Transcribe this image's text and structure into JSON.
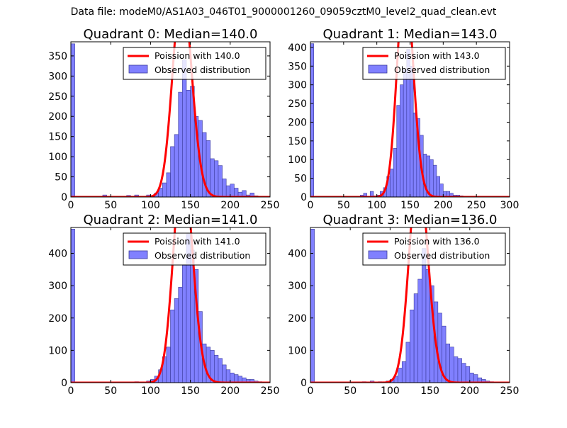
{
  "figure": {
    "suptitle": "Data file: modeM0/AS1A03_046T01_9000001260_09059cztM0_level2_quad_clean.evt"
  },
  "colors": {
    "bar_fill": "#8080ff",
    "bar_edge": "#3a3a99",
    "poisson_line": "#ff0000",
    "axis": "#000000"
  },
  "chart_data": [
    {
      "type": "bar",
      "title": "Quadrant 0: Median=140.0",
      "xlim": [
        0,
        250
      ],
      "ylim": [
        0,
        385
      ],
      "xticks": [
        0,
        50,
        100,
        150,
        200,
        250
      ],
      "yticks": [
        0,
        50,
        100,
        150,
        200,
        250,
        300,
        350
      ],
      "bin_width": 5,
      "legend": {
        "location": "top-right",
        "line_label": "Poission with 140.0",
        "bar_label": "Observed distribution"
      },
      "poisson_mean": 140.0,
      "poisson_scale": 5,
      "bins": [
        [
          0,
          380
        ],
        [
          40,
          5
        ],
        [
          70,
          4
        ],
        [
          80,
          5
        ],
        [
          95,
          5
        ],
        [
          100,
          3
        ],
        [
          105,
          10
        ],
        [
          110,
          22
        ],
        [
          115,
          35
        ],
        [
          120,
          60
        ],
        [
          125,
          125
        ],
        [
          130,
          155
        ],
        [
          135,
          260
        ],
        [
          140,
          340
        ],
        [
          145,
          265
        ],
        [
          150,
          275
        ],
        [
          155,
          200
        ],
        [
          160,
          190
        ],
        [
          165,
          160
        ],
        [
          170,
          140
        ],
        [
          175,
          95
        ],
        [
          180,
          90
        ],
        [
          185,
          78
        ],
        [
          190,
          45
        ],
        [
          195,
          28
        ],
        [
          200,
          32
        ],
        [
          205,
          22
        ],
        [
          210,
          12
        ],
        [
          215,
          16
        ],
        [
          220,
          5
        ],
        [
          225,
          10
        ],
        [
          230,
          3
        ],
        [
          235,
          2
        ]
      ]
    },
    {
      "type": "bar",
      "title": "Quadrant 1: Median=143.0",
      "xlim": [
        0,
        300
      ],
      "ylim": [
        0,
        415
      ],
      "xticks": [
        0,
        50,
        100,
        150,
        200,
        250,
        300
      ],
      "yticks": [
        0,
        50,
        100,
        150,
        200,
        250,
        300,
        350,
        400
      ],
      "bin_width": 5,
      "legend": {
        "location": "top-right",
        "line_label": "Poission with 143.0",
        "bar_label": "Observed distribution"
      },
      "poisson_mean": 143.0,
      "poisson_scale": 5,
      "bins": [
        [
          0,
          410
        ],
        [
          75,
          5
        ],
        [
          80,
          10
        ],
        [
          90,
          15
        ],
        [
          95,
          3
        ],
        [
          100,
          5
        ],
        [
          105,
          15
        ],
        [
          110,
          25
        ],
        [
          115,
          55
        ],
        [
          120,
          75
        ],
        [
          125,
          130
        ],
        [
          130,
          245
        ],
        [
          135,
          300
        ],
        [
          140,
          340
        ],
        [
          145,
          395
        ],
        [
          150,
          350
        ],
        [
          155,
          225
        ],
        [
          160,
          210
        ],
        [
          165,
          165
        ],
        [
          170,
          115
        ],
        [
          175,
          110
        ],
        [
          180,
          100
        ],
        [
          185,
          85
        ],
        [
          190,
          55
        ],
        [
          195,
          35
        ],
        [
          200,
          15
        ],
        [
          205,
          15
        ],
        [
          210,
          10
        ],
        [
          215,
          5
        ],
        [
          220,
          5
        ],
        [
          225,
          3
        ],
        [
          240,
          2
        ]
      ]
    },
    {
      "type": "bar",
      "title": "Quadrant 2: Median=141.0",
      "xlim": [
        0,
        250
      ],
      "ylim": [
        0,
        480
      ],
      "xticks": [
        0,
        50,
        100,
        150,
        200,
        250
      ],
      "yticks": [
        0,
        100,
        200,
        300,
        400
      ],
      "bin_width": 5,
      "legend": {
        "location": "top-right",
        "line_label": "Poission with 141.0",
        "bar_label": "Observed distribution"
      },
      "poisson_mean": 141.0,
      "poisson_scale": 5,
      "bins": [
        [
          0,
          475
        ],
        [
          80,
          3
        ],
        [
          95,
          5
        ],
        [
          100,
          10
        ],
        [
          105,
          20
        ],
        [
          110,
          40
        ],
        [
          115,
          80
        ],
        [
          120,
          110
        ],
        [
          125,
          225
        ],
        [
          130,
          260
        ],
        [
          135,
          295
        ],
        [
          140,
          365
        ],
        [
          145,
          460
        ],
        [
          150,
          410
        ],
        [
          155,
          350
        ],
        [
          160,
          220
        ],
        [
          165,
          120
        ],
        [
          170,
          110
        ],
        [
          175,
          100
        ],
        [
          180,
          85
        ],
        [
          185,
          75
        ],
        [
          190,
          55
        ],
        [
          195,
          40
        ],
        [
          200,
          30
        ],
        [
          205,
          25
        ],
        [
          210,
          20
        ],
        [
          215,
          15
        ],
        [
          220,
          10
        ],
        [
          225,
          10
        ],
        [
          230,
          5
        ],
        [
          235,
          3
        ]
      ]
    },
    {
      "type": "bar",
      "title": "Quadrant 3: Median=136.0",
      "xlim": [
        0,
        250
      ],
      "ylim": [
        0,
        480
      ],
      "xticks": [
        0,
        50,
        100,
        150,
        200,
        250
      ],
      "yticks": [
        0,
        100,
        200,
        300,
        400
      ],
      "bin_width": 5,
      "legend": {
        "location": "top-right",
        "line_label": "Poission with 136.0",
        "bar_label": "Observed distribution"
      },
      "poisson_mean": 136.0,
      "poisson_scale": 5,
      "bins": [
        [
          0,
          475
        ],
        [
          65,
          3
        ],
        [
          75,
          5
        ],
        [
          85,
          3
        ],
        [
          95,
          5
        ],
        [
          100,
          10
        ],
        [
          105,
          20
        ],
        [
          110,
          45
        ],
        [
          115,
          65
        ],
        [
          120,
          125
        ],
        [
          125,
          225
        ],
        [
          130,
          275
        ],
        [
          135,
          320
        ],
        [
          140,
          415
        ],
        [
          145,
          350
        ],
        [
          150,
          300
        ],
        [
          155,
          250
        ],
        [
          160,
          215
        ],
        [
          165,
          175
        ],
        [
          170,
          120
        ],
        [
          175,
          110
        ],
        [
          180,
          80
        ],
        [
          185,
          75
        ],
        [
          190,
          60
        ],
        [
          195,
          50
        ],
        [
          200,
          30
        ],
        [
          205,
          25
        ],
        [
          210,
          15
        ],
        [
          215,
          10
        ],
        [
          220,
          5
        ],
        [
          225,
          3
        ]
      ]
    }
  ]
}
